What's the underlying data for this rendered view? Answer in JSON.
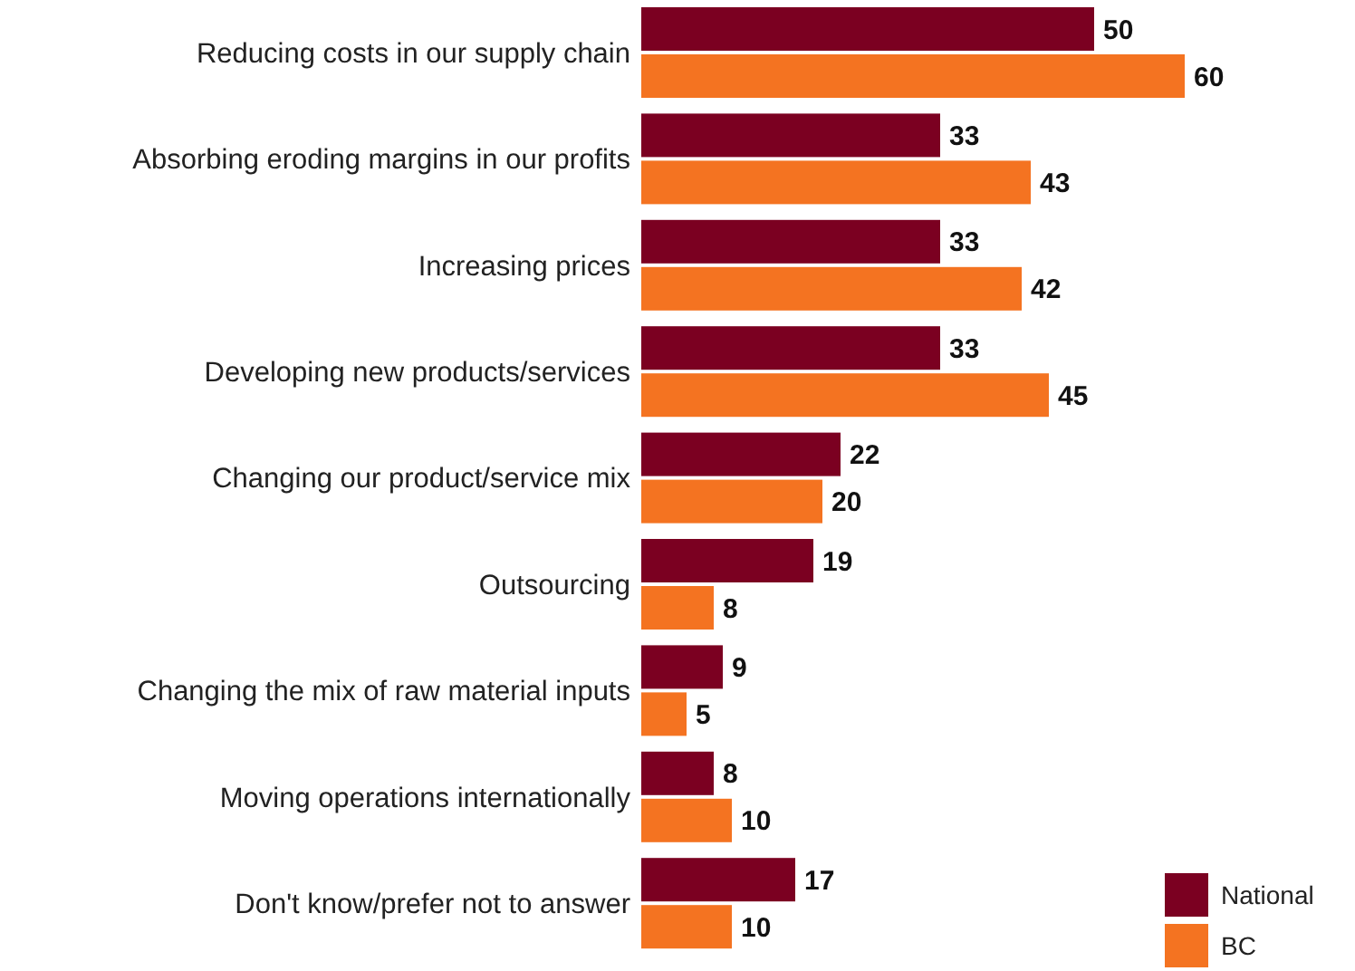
{
  "chart_data": {
    "type": "bar",
    "orientation": "horizontal",
    "data_labels": true,
    "legend": "bottom right",
    "categories": [
      "Reducing costs in our supply chain",
      "Absorbing eroding margins in our profits",
      "Increasing prices",
      "Developing new products/services",
      "Changing our product/service mix",
      "Outsourcing",
      "Changing the mix of raw material inputs",
      "Moving operations internationally",
      "Don't know/prefer not to answer"
    ],
    "series": [
      {
        "name": "National",
        "color": "#7b0021",
        "values": [
          50,
          33,
          33,
          33,
          22,
          19,
          9,
          8,
          17
        ]
      },
      {
        "name": "BC",
        "color": "#f47321",
        "values": [
          60,
          43,
          42,
          45,
          20,
          8,
          5,
          10,
          10
        ]
      }
    ]
  }
}
